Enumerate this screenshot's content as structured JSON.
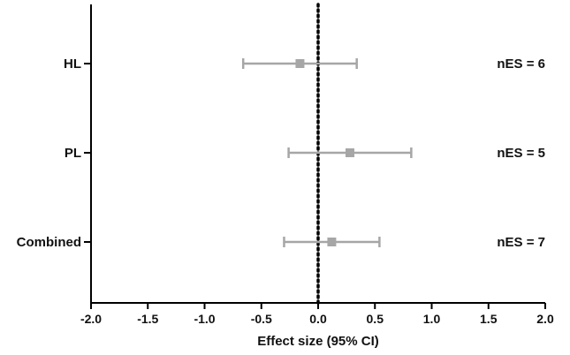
{
  "chart_data": {
    "type": "forest",
    "xlabel": "Effect size (95% CI)",
    "xlim": [
      -2.0,
      2.0
    ],
    "xticks": [
      {
        "value": -2.0,
        "label": "-2.0"
      },
      {
        "value": -1.5,
        "label": "-1.5"
      },
      {
        "value": -1.0,
        "label": "-1.0"
      },
      {
        "value": -0.5,
        "label": "-0.5"
      },
      {
        "value": 0.0,
        "label": "0.0"
      },
      {
        "value": 0.5,
        "label": "0.5"
      },
      {
        "value": 1.0,
        "label": "1.0"
      },
      {
        "value": 1.5,
        "label": "1.5"
      },
      {
        "value": 2.0,
        "label": "2.0"
      }
    ],
    "reference_line": 0,
    "rows": [
      {
        "label": "HL",
        "estimate": -0.16,
        "ci_low": -0.66,
        "ci_high": 0.34,
        "n_label": "nES = 6"
      },
      {
        "label": "PL",
        "estimate": 0.28,
        "ci_low": -0.26,
        "ci_high": 0.82,
        "n_label": "nES = 5"
      },
      {
        "label": "Combined",
        "estimate": 0.12,
        "ci_low": -0.3,
        "ci_high": 0.54,
        "n_label": "nES = 7"
      }
    ],
    "marker_color": "#a6a6a6",
    "axis_color": "#000000"
  }
}
